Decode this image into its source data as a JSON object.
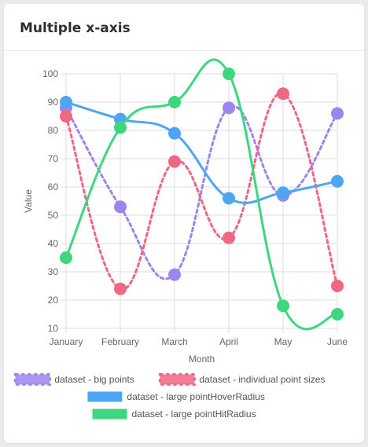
{
  "card": {
    "title": "Multiple x-axis"
  },
  "chart_data": {
    "type": "line",
    "title": "Multiple x-axis",
    "xlabel": "Month",
    "ylabel": "Value",
    "categories": [
      "January",
      "February",
      "March",
      "April",
      "May",
      "June"
    ],
    "ylim": [
      10,
      100
    ],
    "yticks": [
      10,
      20,
      30,
      40,
      50,
      60,
      70,
      80,
      90,
      100
    ],
    "grid": true,
    "legend_position": "bottom",
    "series": [
      {
        "name": "dataset - big points",
        "color": "#9c85ef",
        "dashed": true,
        "values": [
          88,
          53,
          29,
          88,
          57,
          86
        ]
      },
      {
        "name": "dataset - individual point sizes",
        "color": "#f06783",
        "dashed": true,
        "values": [
          85,
          24,
          69,
          42,
          93,
          25
        ]
      },
      {
        "name": "dataset - large pointHoverRadius",
        "color": "#4da6f2",
        "dashed": false,
        "values": [
          90,
          84,
          79,
          56,
          58,
          62
        ]
      },
      {
        "name": "dataset - large pointHitRadius",
        "color": "#3ed67f",
        "dashed": false,
        "values": [
          35,
          81,
          90,
          100,
          18,
          15
        ]
      }
    ]
  }
}
